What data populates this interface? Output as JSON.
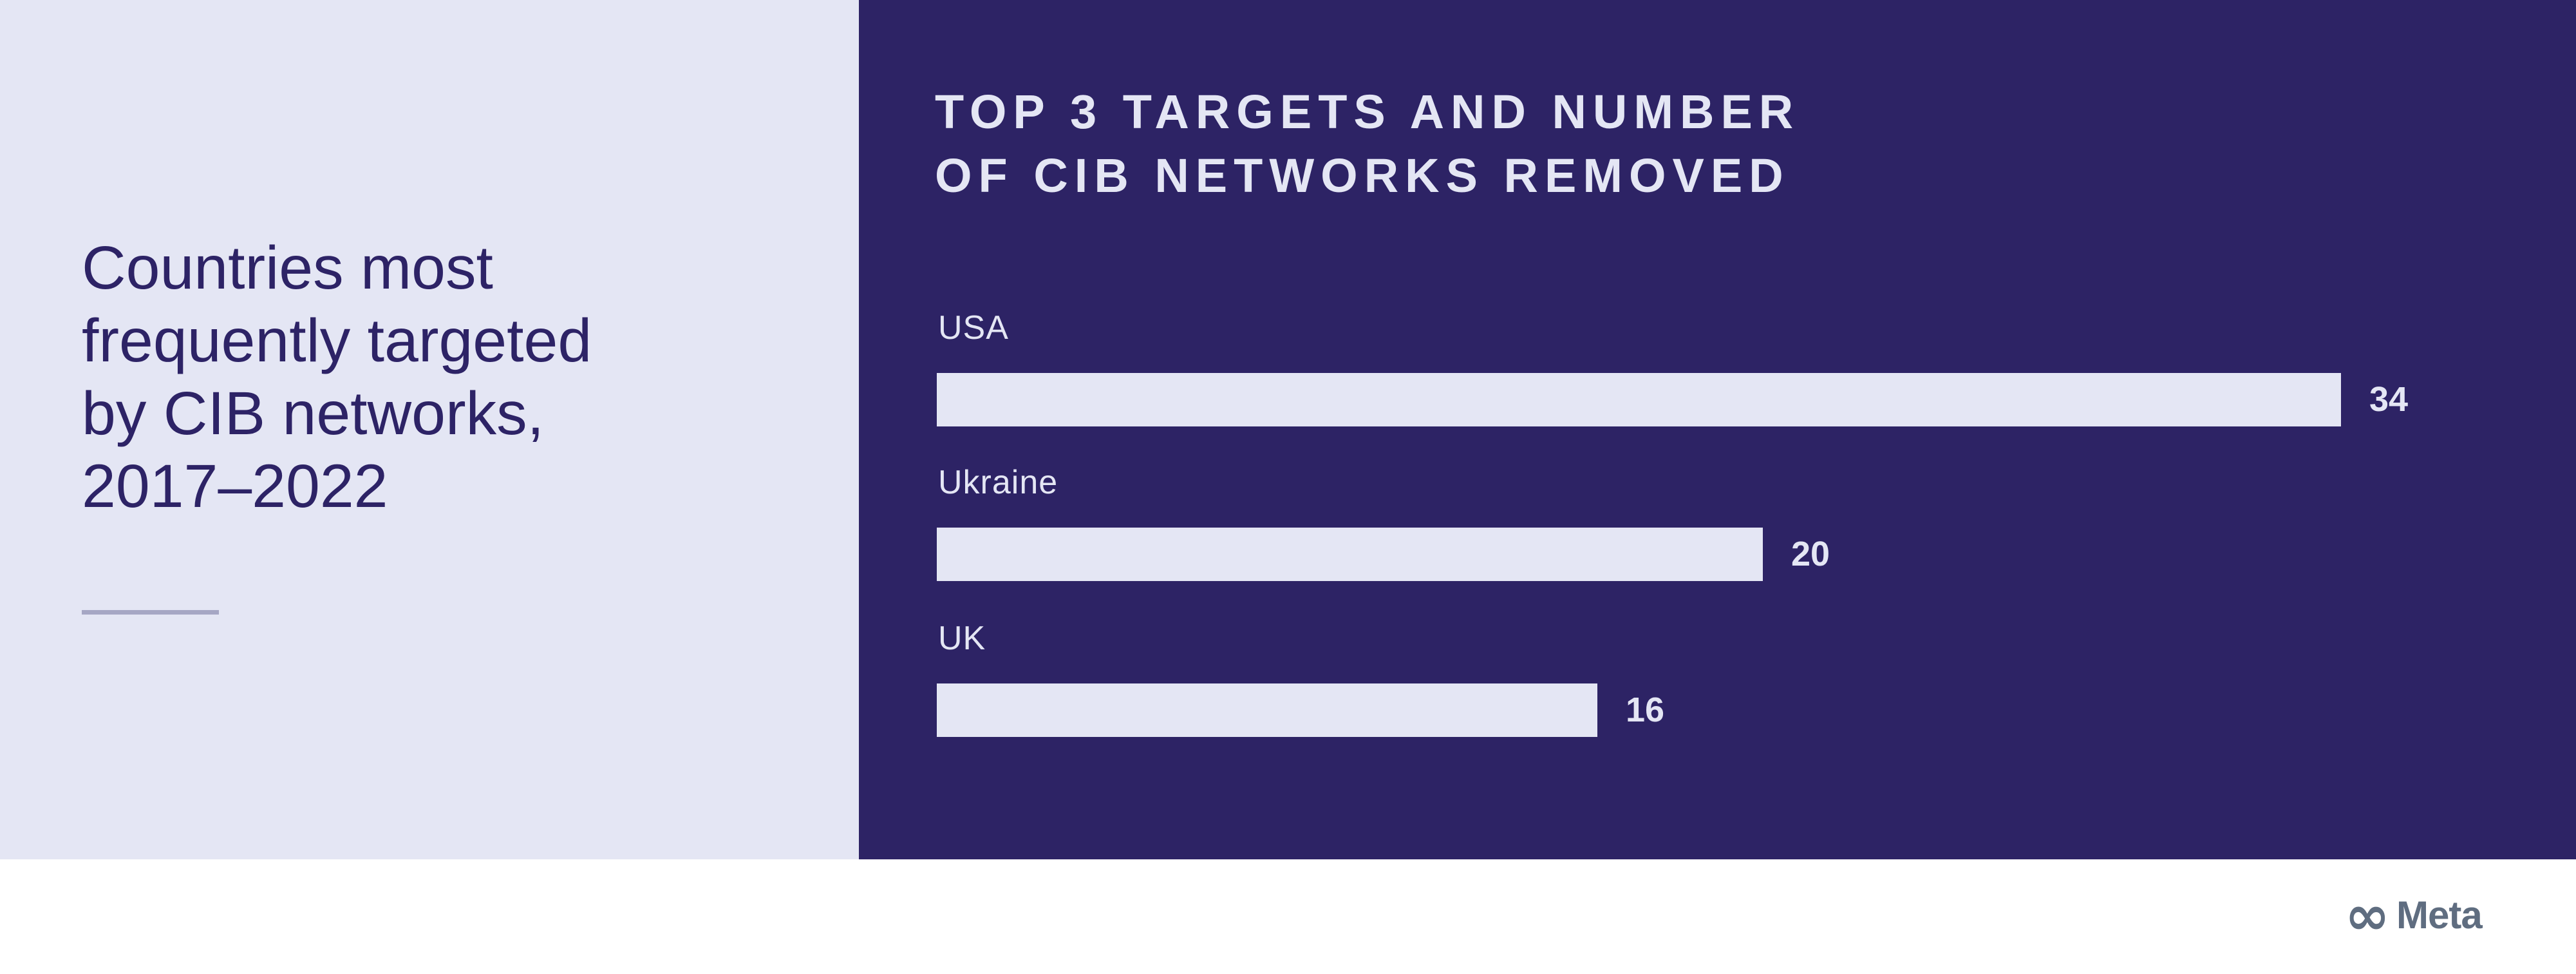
{
  "left_panel": {
    "title_lines": [
      "Countries most",
      "frequently targeted",
      "by CIB networks,",
      "2017–2022"
    ]
  },
  "chart_panel": {
    "heading_lines": [
      "TOP 3 TARGETS AND NUMBER",
      "OF CIB NETWORKS REMOVED"
    ]
  },
  "footer": {
    "logo_glyph": "∞",
    "brand_wordmark": "Meta"
  },
  "colors": {
    "panel_light": "#E4E6F4",
    "panel_dark": "#2D2365",
    "title_text": "#2D2366",
    "bar_fill": "#E4E6F4",
    "divider": "#A6A7C4",
    "logo_gray": "#5F6D80"
  },
  "chart_data": {
    "type": "bar",
    "orientation": "horizontal",
    "title": "TOP 3 TARGETS AND NUMBER OF CIB NETWORKS REMOVED",
    "subtitle": "Countries most frequently targeted by CIB networks, 2017–2022",
    "categories": [
      "USA",
      "Ukraine",
      "UK"
    ],
    "values": [
      34,
      20,
      16
    ],
    "xlim": [
      0,
      34
    ],
    "xlabel": "",
    "ylabel": "",
    "grid": false,
    "legend_position": "none",
    "value_label_position": "outside-end"
  }
}
